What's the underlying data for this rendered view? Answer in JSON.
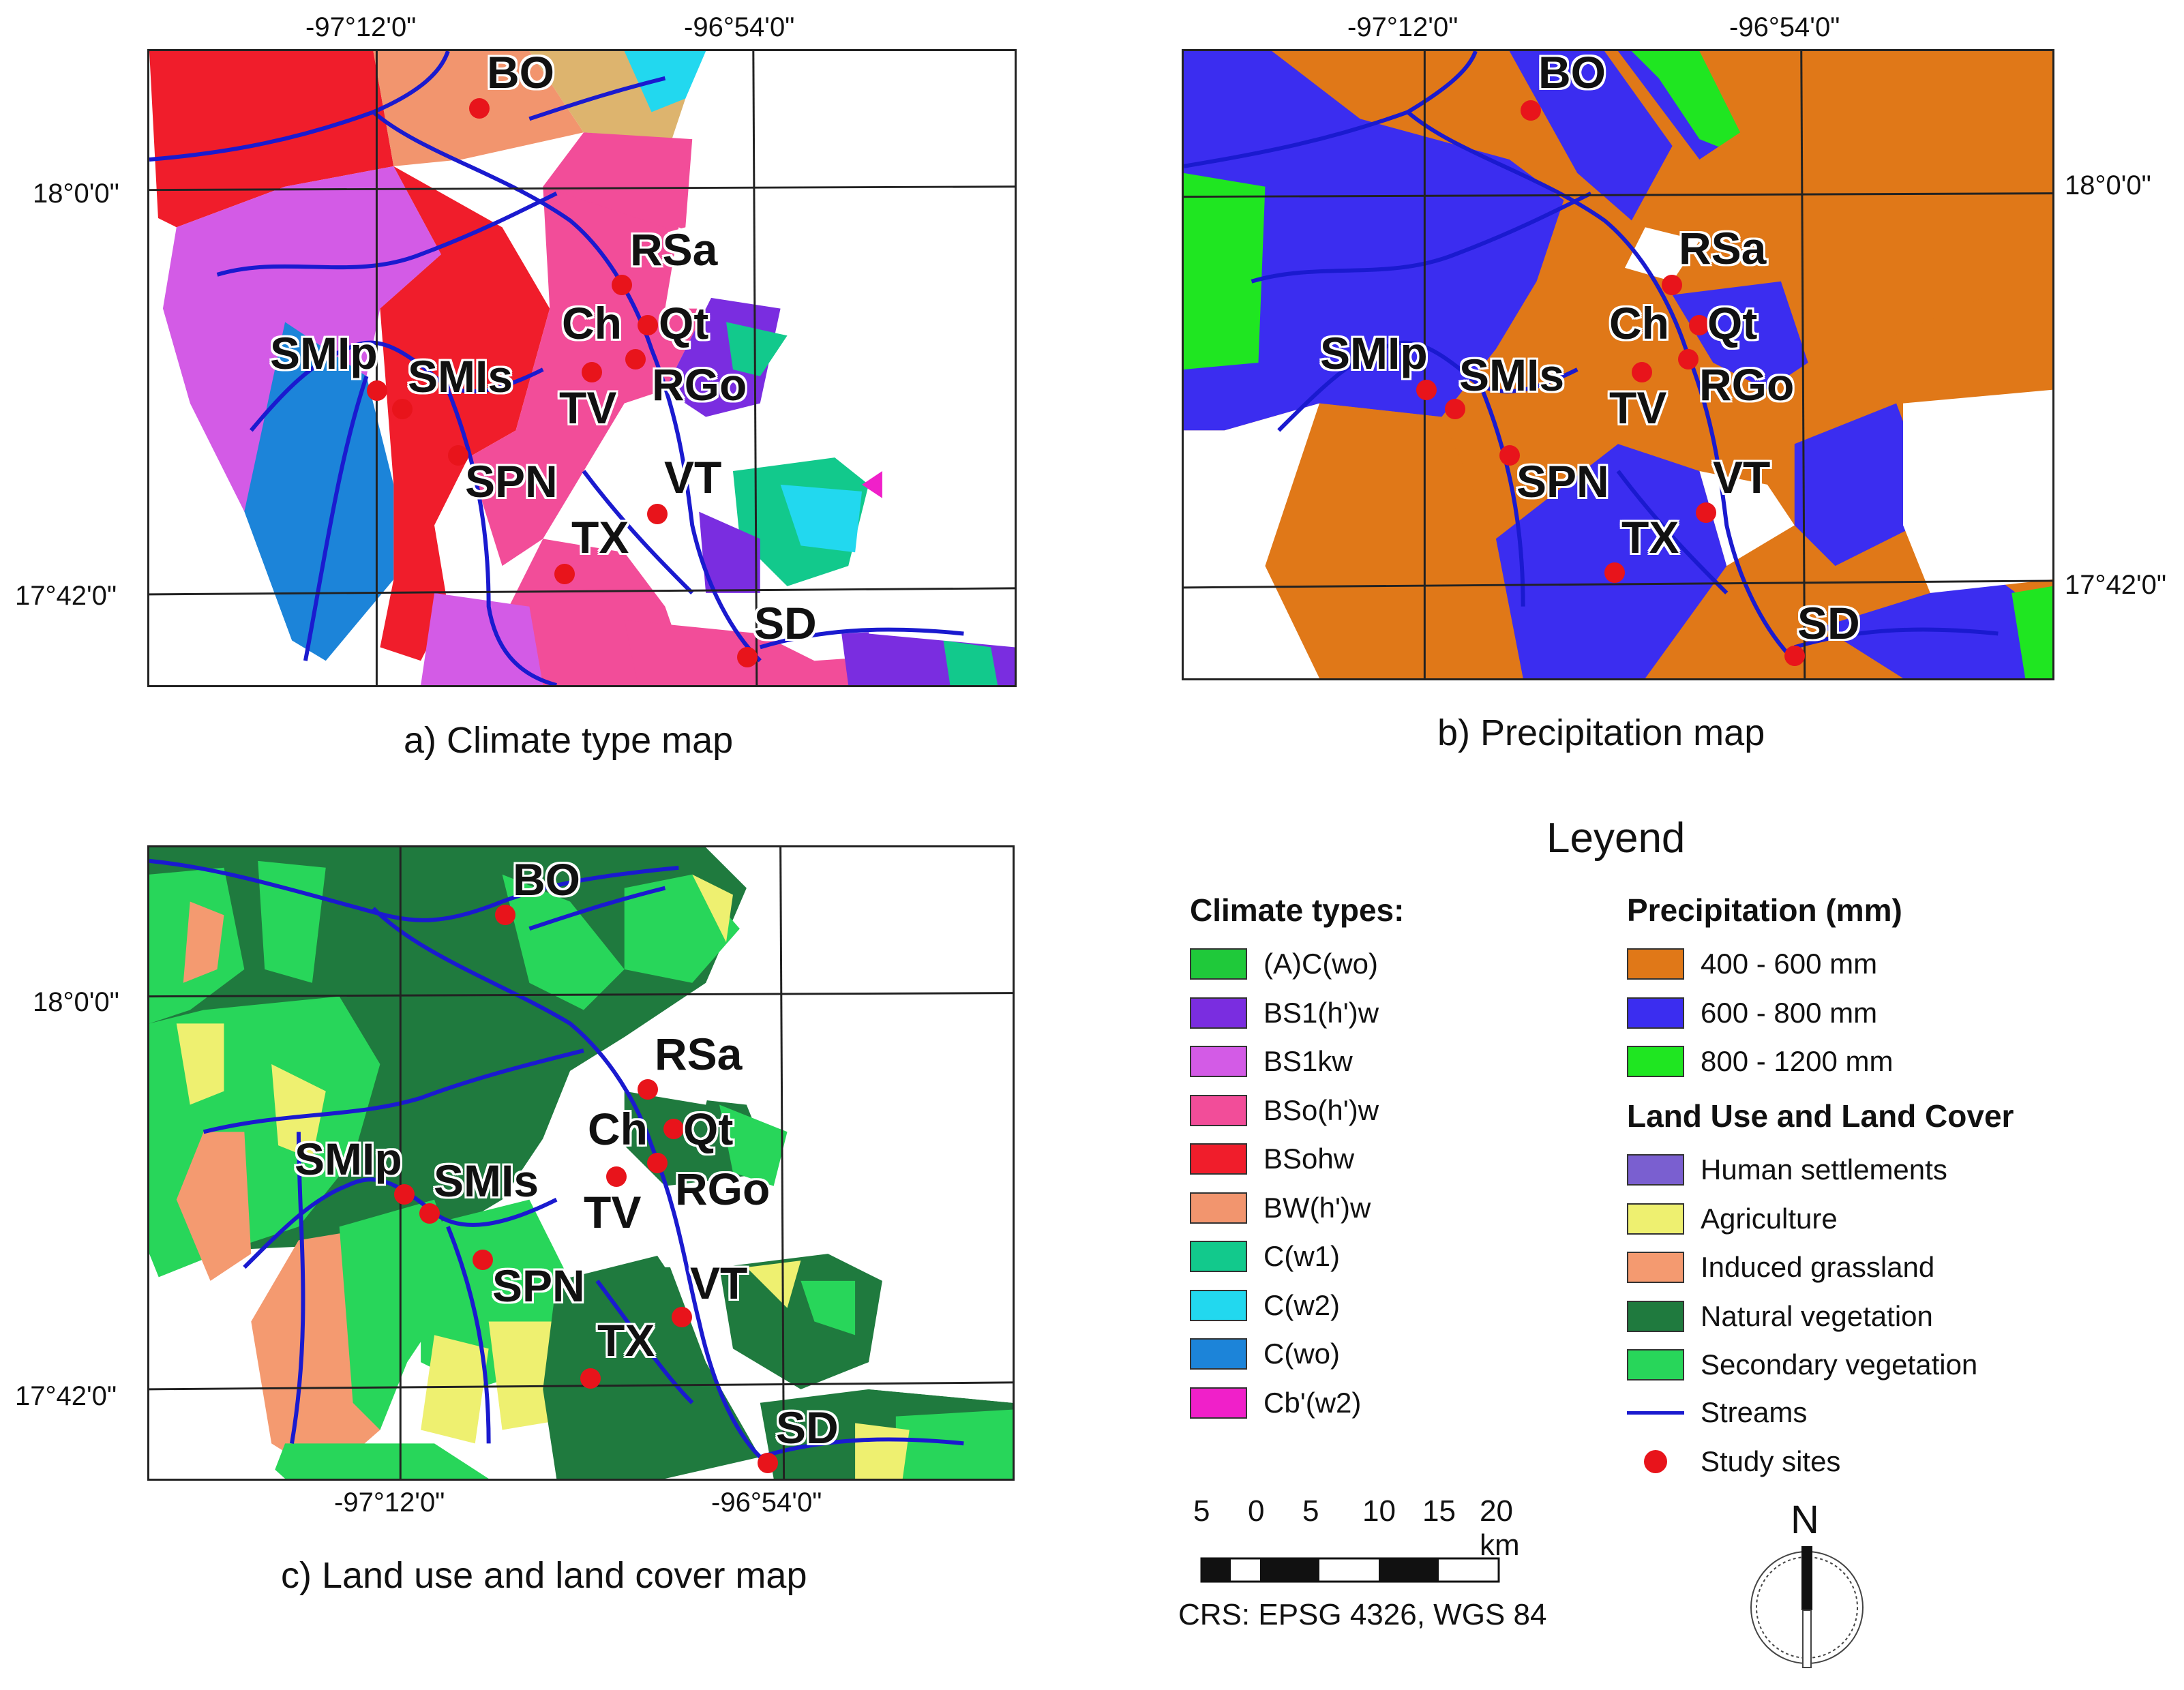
{
  "maps": {
    "a": {
      "caption": "a) Climate type map",
      "coords_top": [
        "-97°12'0\"",
        "-96°54'0\""
      ],
      "coords_left": [
        "18°0'0\"",
        "17°42'0\""
      ]
    },
    "b": {
      "caption": "b) Precipitation map",
      "coords_top": [
        "-97°12'0\"",
        "-96°54'0\""
      ],
      "coords_right": [
        "18°0'0\"",
        "17°42'0\""
      ]
    },
    "c": {
      "caption": "c) Land use and land cover map",
      "coords_bottom": [
        "-97°12'0\"",
        "-96°54'0\""
      ],
      "coords_left": [
        "18°0'0\"",
        "17°42'0\""
      ]
    }
  },
  "sites": [
    "BO",
    "RSa",
    "Ch",
    "Qt",
    "SMIp",
    "SMIs",
    "TV",
    "RGo",
    "SPN",
    "VT",
    "TX",
    "SD"
  ],
  "legend": {
    "title": "Leyend",
    "climate_heading": "Climate types:",
    "climate_types": [
      {
        "label": "(A)C(wo)",
        "color": "#1fc93a"
      },
      {
        "label": "BS1(h')w",
        "color": "#7a2de0"
      },
      {
        "label": "BS1kw",
        "color": "#d35be6"
      },
      {
        "label": "BSo(h')w",
        "color": "#f24d99"
      },
      {
        "label": "BSohw",
        "color": "#f01d2b"
      },
      {
        "label": "BW(h')w",
        "color": "#f2956e"
      },
      {
        "label": "C(w1)",
        "color": "#12c98c"
      },
      {
        "label": "C(w2)",
        "color": "#22d8ef"
      },
      {
        "label": "C(wo)",
        "color": "#1c84d9"
      },
      {
        "label": "Cb'(w2)",
        "color": "#f020c9"
      }
    ],
    "precip_heading": "Precipitation (mm)",
    "precip": [
      {
        "label": "400 - 600 mm",
        "color": "#e07818"
      },
      {
        "label": "600 - 800 mm",
        "color": "#3b2df0"
      },
      {
        "label": "800 - 1200 mm",
        "color": "#1fe621"
      }
    ],
    "landuse_heading": "Land Use and Land Cover",
    "landuse": [
      {
        "label": "Human settlements",
        "color": "#7a5fd0"
      },
      {
        "label": "Agriculture",
        "color": "#eef070"
      },
      {
        "label": "Induced grassland",
        "color": "#f49a70"
      },
      {
        "label": "Natural vegetation",
        "color": "#1f7a3e"
      },
      {
        "label": "Secondary vegetation",
        "color": "#28d65a"
      }
    ],
    "streams_label": "Streams",
    "streams_color": "#1a1acf",
    "sites_label": "Study sites",
    "sites_color": "#e8141b"
  },
  "scale": {
    "labels": [
      "5",
      "0",
      "5",
      "10",
      "15",
      "20 km"
    ]
  },
  "crs": "CRS: EPSG 4326, WGS 84",
  "north": "N"
}
